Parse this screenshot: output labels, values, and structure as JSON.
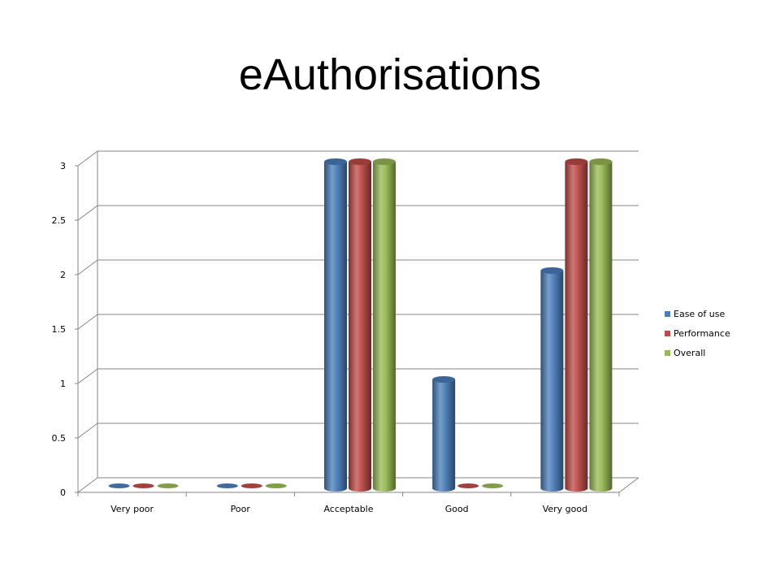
{
  "title": "eAuthorisations",
  "chart_data": {
    "type": "bar",
    "style": "3d-cylinder",
    "title": "",
    "xlabel": "",
    "ylabel": "",
    "categories": [
      "Very poor",
      "Poor",
      "Acceptable",
      "Good",
      "Very good"
    ],
    "series": [
      {
        "name": "Ease of use",
        "color": "#4a7ebb",
        "values": [
          0,
          0,
          3,
          1,
          2
        ]
      },
      {
        "name": "Performance",
        "color": "#be4b48",
        "values": [
          0,
          0,
          3,
          0,
          3
        ]
      },
      {
        "name": "Overall",
        "color": "#98b954",
        "values": [
          0,
          0,
          3,
          0,
          3
        ]
      }
    ],
    "ylim": [
      0,
      3
    ],
    "yticks": [
      "0",
      "0.5",
      "1",
      "1.5",
      "2",
      "2.5",
      "3"
    ],
    "grid": true,
    "legend_position": "right"
  }
}
